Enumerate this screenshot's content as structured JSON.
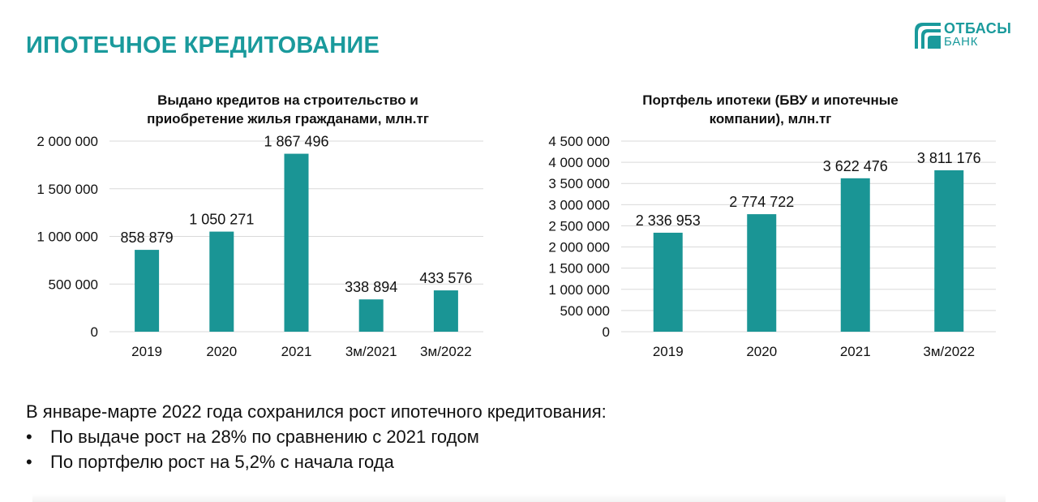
{
  "page": {
    "title": "ИПОТЕЧНОЕ КРЕДИТОВАНИЕ",
    "logo": {
      "line1": "ОТБАСЫ",
      "line2": "БАНК"
    },
    "colors": {
      "accent": "#1a9a9c",
      "bar": "#1a9595",
      "grid": "#d9d9d9"
    }
  },
  "chart_data": [
    {
      "type": "bar",
      "title_line1": "Выдано кредитов на строительство и",
      "title_line2": "приобретение жилья гражданами, млн.тг",
      "categories": [
        "2019",
        "2020",
        "2021",
        "3м/2021",
        "3м/2022"
      ],
      "values": [
        858879,
        1050271,
        1867496,
        338894,
        433576
      ],
      "value_labels": [
        "858 879",
        "1 050 271",
        "1 867 496",
        "338 894",
        "433 576"
      ],
      "ylim": [
        0,
        2000000
      ],
      "yticks": [
        0,
        500000,
        1000000,
        1500000,
        2000000
      ],
      "ytick_labels": [
        "0",
        "500 000",
        "1 000 000",
        "1 500 000",
        "2 000 000"
      ],
      "grid": true
    },
    {
      "type": "bar",
      "title_line1": "Портфель ипотеки (БВУ и ипотечные",
      "title_line2": "компании), млн.тг",
      "categories": [
        "2019",
        "2020",
        "2021",
        "3м/2022"
      ],
      "values": [
        2336953,
        2774722,
        3622476,
        3811176
      ],
      "value_labels": [
        "2 336 953",
        "2 774 722",
        "3 622 476",
        "3 811 176"
      ],
      "ylim": [
        0,
        4500000
      ],
      "yticks": [
        0,
        500000,
        1000000,
        1500000,
        2000000,
        2500000,
        3000000,
        3500000,
        4000000,
        4500000
      ],
      "ytick_labels": [
        "0",
        "500 000",
        "1 000 000",
        "1 500 000",
        "2 000 000",
        "2 500 000",
        "3 000 000",
        "3 500 000",
        "4 000 000",
        "4 500 000"
      ],
      "grid": true
    }
  ],
  "note": {
    "intro": "В январе-марте 2022 года сохранился рост ипотечного кредитования:",
    "bullet_symbol": "•",
    "bullets": [
      "По выдаче рост на 28% по сравнению с 2021 годом",
      "По портфелю рост на 5,2% с начала года"
    ]
  }
}
